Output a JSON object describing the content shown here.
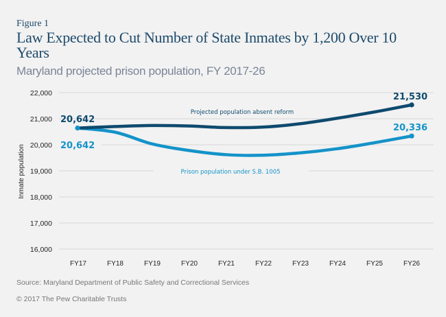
{
  "figure_label": "Figure 1",
  "title": "Law Expected to Cut Number of State Inmates by 1,200 Over 10 Years",
  "subtitle": "Maryland projected prison population, FY 2017-26",
  "source": "Source: Maryland Department of Public Safety and Correctional Services",
  "copyright": "© 2017 The Pew Charitable Trusts",
  "colors": {
    "series_dark": "#0e4a6e",
    "series_light": "#1493c9",
    "grid": "#d6d6d6",
    "text": "#222222"
  },
  "chart_data": {
    "type": "line",
    "title": "Law Expected to Cut Number of State Inmates by 1,200 Over 10 Years",
    "subtitle": "Maryland projected prison population, FY 2017-26",
    "xlabel": "",
    "ylabel": "Inmate population",
    "categories": [
      "FY17",
      "FY18",
      "FY19",
      "FY20",
      "FY21",
      "FY22",
      "FY23",
      "FY24",
      "FY25",
      "FY26"
    ],
    "ylim": [
      16000,
      22000
    ],
    "yticks": [
      16000,
      17000,
      18000,
      19000,
      20000,
      21000,
      22000
    ],
    "ytick_labels": [
      "16,000",
      "17,000",
      "18,000",
      "19,000",
      "20,000",
      "21,000",
      "22,000"
    ],
    "grid": true,
    "series": [
      {
        "name": "Projected population absent reform",
        "color": "#0e4a6e",
        "values": [
          20642,
          20700,
          20740,
          20720,
          20660,
          20680,
          20810,
          21020,
          21260,
          21530
        ],
        "start_label": "20,642",
        "end_label": "21,530"
      },
      {
        "name": "Prison population under S.B. 1005",
        "color": "#1493c9",
        "values": [
          20642,
          20480,
          20030,
          19780,
          19620,
          19600,
          19690,
          19850,
          20080,
          20336
        ],
        "start_label": "20,642",
        "end_label": "20,336"
      }
    ]
  }
}
